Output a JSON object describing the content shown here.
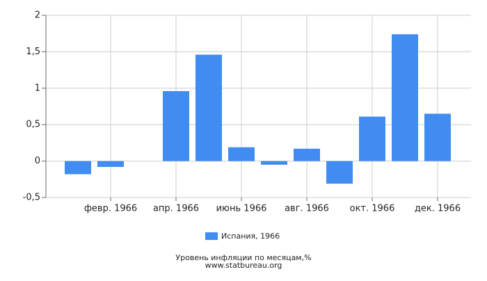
{
  "chart_data": {
    "type": "bar",
    "title": "Уровень инфляции по месяцам,%",
    "source": "www.statbureau.org",
    "categories": [
      null,
      "февр. 1966",
      null,
      "апр. 1966",
      null,
      "июнь 1966",
      null,
      "авг. 1966",
      null,
      "окт. 1966",
      null,
      "дек. 1966"
    ],
    "series": [
      {
        "name": "Испания, 1966",
        "color": "#418cf0",
        "values": [
          -0.18,
          -0.08,
          0,
          0.96,
          1.46,
          0.19,
          -0.05,
          0.17,
          -0.31,
          0.61,
          1.74,
          0.65
        ]
      }
    ],
    "ylim": [
      -0.5,
      2
    ],
    "yticks": [
      {
        "value": -0.5,
        "label": "-0,5"
      },
      0,
      {
        "value": 0.5,
        "label": "0,5"
      },
      1,
      {
        "value": 1.5,
        "label": "1,5"
      },
      2
    ],
    "grid": true
  }
}
